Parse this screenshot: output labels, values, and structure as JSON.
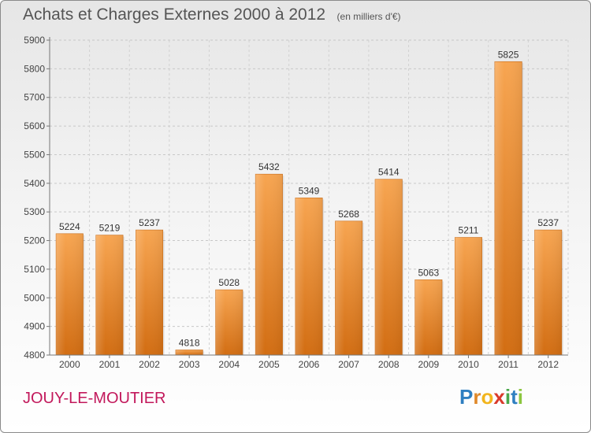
{
  "header": {
    "title": "Achats et Charges Externes 2000 à 2012",
    "unit": "(en milliers d'€)"
  },
  "footer": {
    "commune": "JOUY-LE-MOUTIER",
    "logo_text": "Proxiti",
    "logo_letters": [
      {
        "char": "P",
        "color": "#2f7fc1"
      },
      {
        "char": "r",
        "color": "#e0892a"
      },
      {
        "char": "o",
        "color": "#f2b51d"
      },
      {
        "char": "x",
        "color": "#d93a2b"
      },
      {
        "char": "i",
        "color": "#4aa84b"
      },
      {
        "char": "t",
        "color": "#2f7fc1"
      },
      {
        "char": "i",
        "color": "#8cc63f"
      }
    ]
  },
  "chart_data": {
    "type": "bar",
    "title": "Achats et Charges Externes 2000 à 2012",
    "subtitle": "(en milliers d'€)",
    "categories": [
      "2000",
      "2001",
      "2002",
      "2003",
      "2004",
      "2005",
      "2006",
      "2007",
      "2008",
      "2009",
      "2010",
      "2011",
      "2012"
    ],
    "values": [
      5224,
      5219,
      5237,
      4818,
      5028,
      5432,
      5349,
      5268,
      5414,
      5063,
      5211,
      5825,
      5237
    ],
    "ylim": [
      4800,
      5900
    ],
    "yticks": [
      4800,
      4900,
      5000,
      5100,
      5200,
      5300,
      5400,
      5500,
      5600,
      5700,
      5800,
      5900
    ],
    "grid": true,
    "bar_color": "#f0922e",
    "xlabel": "",
    "ylabel": ""
  }
}
